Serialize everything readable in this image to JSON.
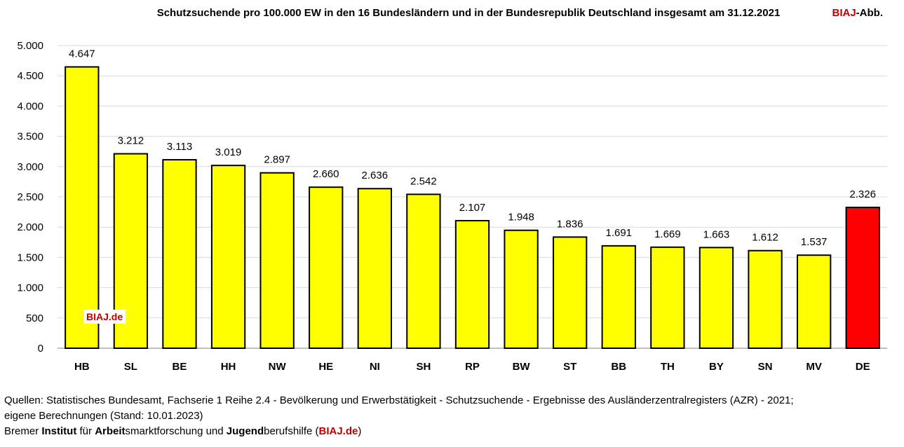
{
  "header": {
    "title": "Schutzsuchende pro 100.000 EW in den 16 Bundesländern und in der Bundesrepublik Deutschland insgesamt am 31.12.2021",
    "badge_brand": "BIAJ",
    "badge_suffix": "-Abb."
  },
  "watermark": "BIAJ.de",
  "footer": {
    "line1": "Quellen: Statistisches Bundesamt, Fachserie 1 Reihe 2.4 - Bevölkerung und Erwerbstätigkeit - Schutzsuchende - Ergebnisse des Ausländerzentralregisters (AZR) - 2021;",
    "line2": "eigene Berechnungen (Stand: 10.01.2023)",
    "line3": {
      "p1": "Bremer ",
      "b1": "Institut",
      "p2": " für ",
      "b2": "Arbeit",
      "p3": "smarktforschung und ",
      "b3": "Jugend",
      "p4": "berufshilfe (",
      "brand": "BIAJ.de",
      "p5": ")"
    }
  },
  "chart_data": {
    "type": "bar",
    "title": "Schutzsuchende pro 100.000 EW in den 16 Bundesländern und in der Bundesrepublik Deutschland insgesamt am 31.12.2021",
    "categories": [
      "HB",
      "SL",
      "BE",
      "HH",
      "NW",
      "HE",
      "NI",
      "SH",
      "RP",
      "BW",
      "ST",
      "BB",
      "TH",
      "BY",
      "SN",
      "MV",
      "DE"
    ],
    "values": [
      4647,
      3212,
      3113,
      3019,
      2897,
      2660,
      2636,
      2542,
      2107,
      1948,
      1836,
      1691,
      1669,
      1663,
      1612,
      1537,
      2326
    ],
    "value_labels": [
      "4.647",
      "3.212",
      "3.113",
      "3.019",
      "2.897",
      "2.660",
      "2.636",
      "2.542",
      "2.107",
      "1.948",
      "1.836",
      "1.691",
      "1.669",
      "1.663",
      "1.612",
      "1.537",
      "2.326"
    ],
    "ylim": [
      0,
      5000
    ],
    "yticks": [
      0,
      500,
      1000,
      1500,
      2000,
      2500,
      3000,
      3500,
      4000,
      4500,
      5000
    ],
    "ytick_labels": [
      "0",
      "500",
      "1.000",
      "1.500",
      "2.000",
      "2.500",
      "3.000",
      "3.500",
      "4.000",
      "4.500",
      "5.000"
    ],
    "grid": true,
    "colors": {
      "default": "#ffff00",
      "highlight": "#ff0000",
      "highlight_category": "DE",
      "outline": "#000000",
      "grid": "#d9d9d9"
    },
    "xlabel": "",
    "ylabel": ""
  }
}
